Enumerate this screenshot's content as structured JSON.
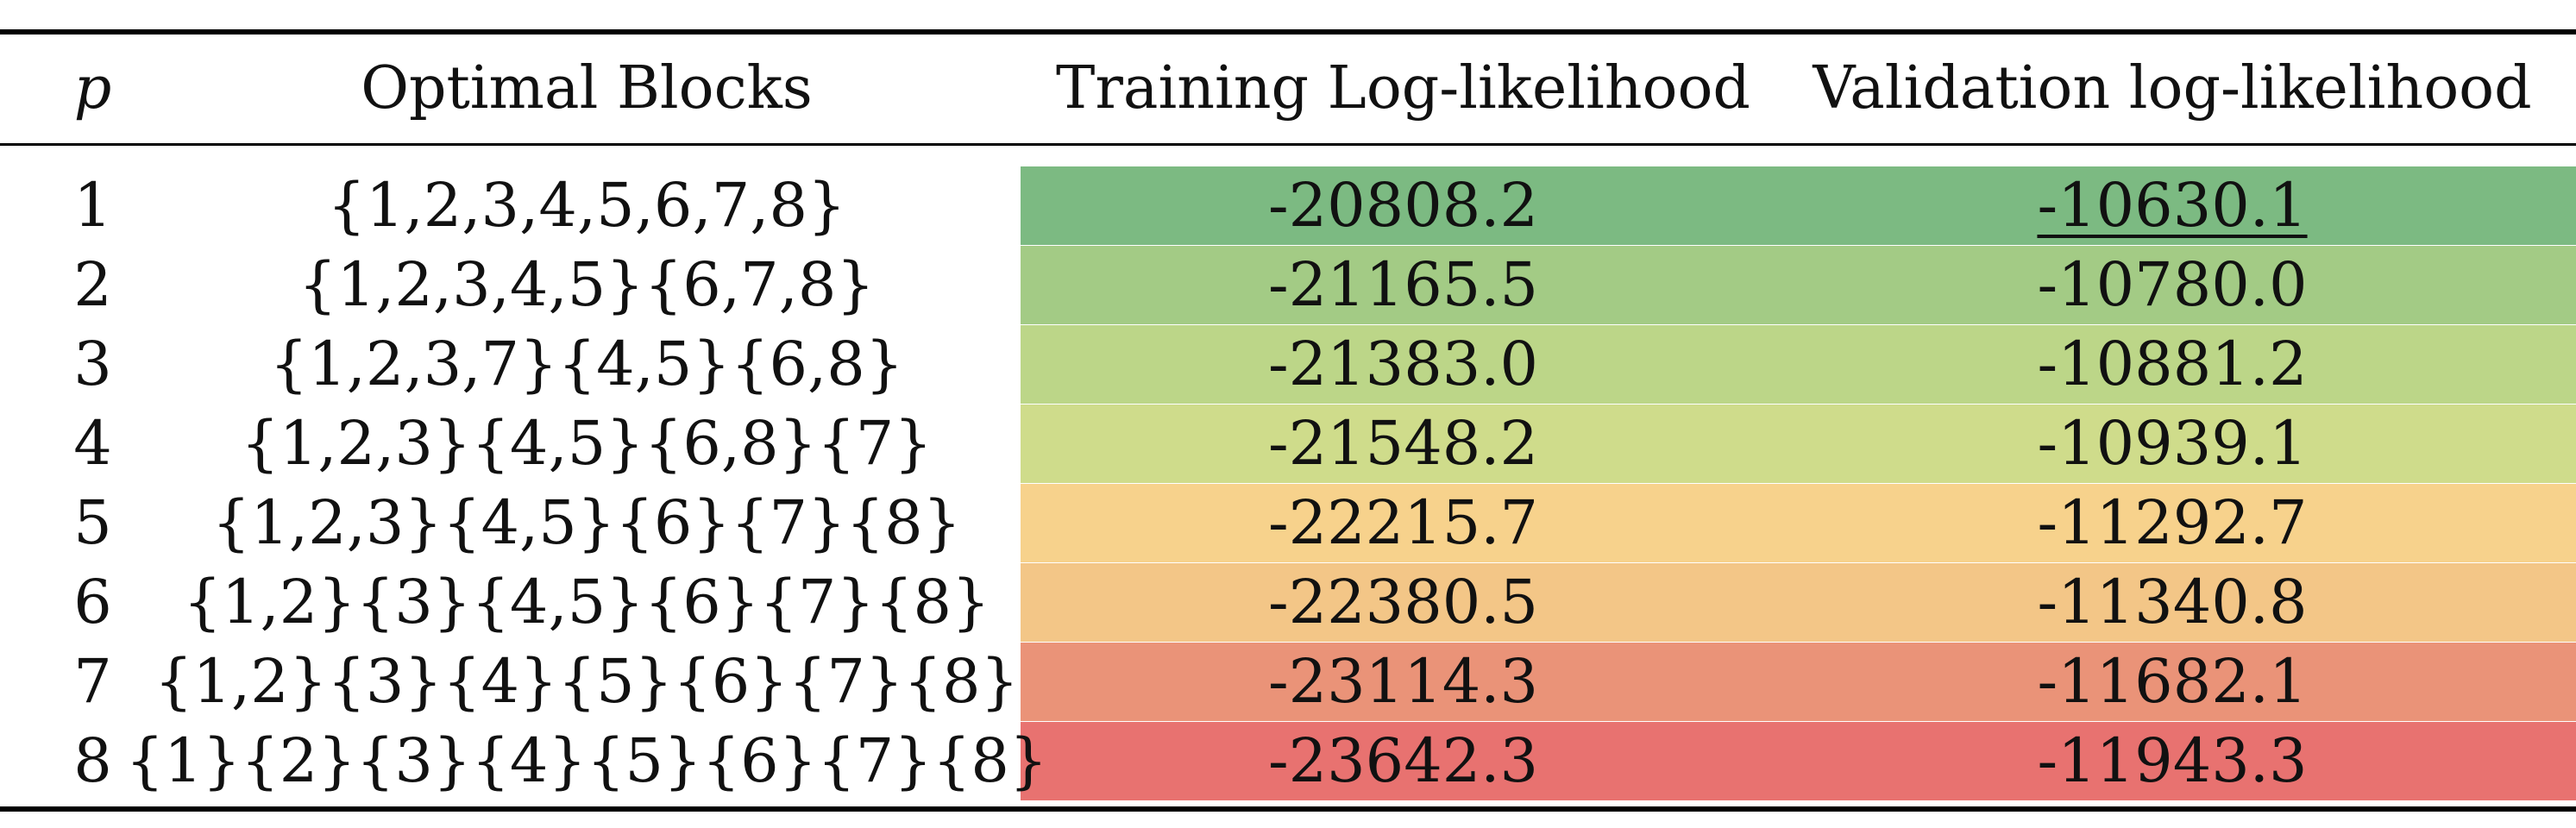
{
  "table": {
    "headers": {
      "p": "p",
      "blocks": "Optimal Blocks",
      "training": "Training Log-likelihood",
      "validation": "Validation log-likelihood"
    },
    "rows": [
      {
        "p": "1",
        "blocks": "{1,2,3,4,5,6,7,8}",
        "training": "-20808.2",
        "validation": "-10630.1",
        "color": "#7cba82"
      },
      {
        "p": "2",
        "blocks": "{1,2,3,4,5}{6,7,8}",
        "training": "-21165.5",
        "validation": "-10780.0",
        "color": "#a3cb85"
      },
      {
        "p": "3",
        "blocks": "{1,2,3,7}{4,5}{6,8}",
        "training": "-21383.0",
        "validation": "-10881.2",
        "color": "#bcd688"
      },
      {
        "p": "4",
        "blocks": "{1,2,3}{4,5}{6,8}{7}",
        "training": "-21548.2",
        "validation": "-10939.1",
        "color": "#cfdc8b"
      },
      {
        "p": "5",
        "blocks": "{1,2,3}{4,5}{6}{7}{8}",
        "training": "-22215.7",
        "validation": "-11292.7",
        "color": "#f7d28c"
      },
      {
        "p": "6",
        "blocks": "{1,2}{3}{4,5}{6}{7}{8}",
        "training": "-22380.5",
        "validation": "-11340.8",
        "color": "#f3c687"
      },
      {
        "p": "7",
        "blocks": "{1,2}{3}{4}{5}{6}{7}{8}",
        "training": "-23114.3",
        "validation": "-11682.1",
        "color": "#ea9378"
      },
      {
        "p": "8",
        "blocks": "{1}{2}{3}{4}{5}{6}{7}{8}",
        "training": "-23642.3",
        "validation": "-11943.3",
        "color": "#e87270"
      }
    ]
  }
}
